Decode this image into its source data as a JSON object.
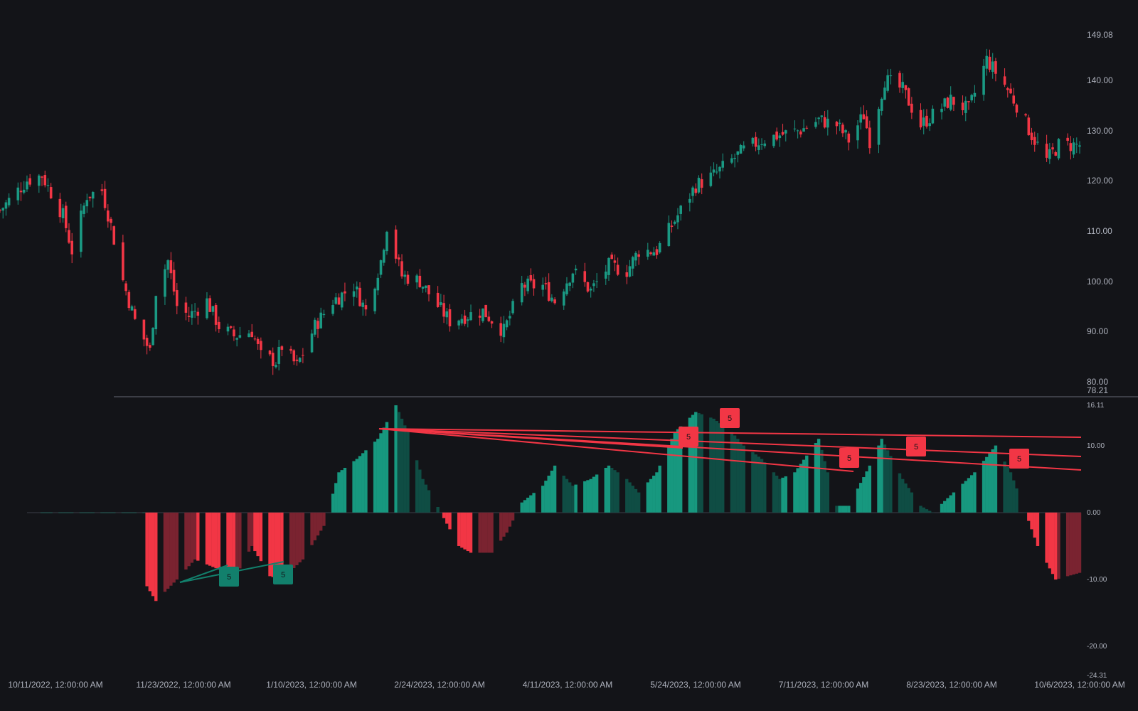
{
  "colors": {
    "background": "#131418",
    "up": "#1a9983",
    "down": "#f23645",
    "histogram_up_strong": "#17987f",
    "histogram_up_weak": "#0f4d44",
    "histogram_down_strong": "#f23645",
    "histogram_down_weak": "#7a2330",
    "axis_text": "#aeb2bd",
    "divider": "#4a4d56",
    "bear_divergence": "#f23645",
    "bull_divergence": "#12806c"
  },
  "price_axis": {
    "ticks": [
      "149.08",
      "140.00",
      "130.00",
      "120.00",
      "110.00",
      "100.00",
      "90.00",
      "80.00",
      "78.21"
    ]
  },
  "oscillator_axis": {
    "ticks": [
      "16.11",
      "10.00",
      "0.00",
      "-10.00",
      "-20.00",
      "-24.31"
    ]
  },
  "time_axis": {
    "labels": [
      "10/11/2022, 12:00:00 AM",
      "11/23/2022, 12:00:00 AM",
      "1/10/2023, 12:00:00 AM",
      "2/24/2023, 12:00:00 AM",
      "4/11/2023, 12:00:00 AM",
      "5/24/2023, 12:00:00 AM",
      "7/11/2023, 12:00:00 AM",
      "8/23/2023, 12:00:00 AM",
      "10/6/2023, 12:00:00 AM"
    ]
  },
  "divergence_markers": [
    {
      "label": "5",
      "kind": "bull"
    },
    {
      "label": "5",
      "kind": "bull"
    },
    {
      "label": "5",
      "kind": "bear"
    },
    {
      "label": "5",
      "kind": "bear"
    },
    {
      "label": "5",
      "kind": "bear"
    },
    {
      "label": "5",
      "kind": "bear"
    },
    {
      "label": "5",
      "kind": "bear"
    }
  ],
  "chart_data": [
    {
      "type": "candlestick",
      "ylim": [
        78.21,
        149.08
      ],
      "x_start": "10/11/2022",
      "x_end": "10/6/2023",
      "close_path": [
        [
          "10/11/2022",
          114
        ],
        [
          "10/20/2022",
          120
        ],
        [
          "10/25/2022",
          121
        ],
        [
          "11/1/2022",
          113
        ],
        [
          "11/4/2022",
          106
        ],
        [
          "11/9/2022",
          117
        ],
        [
          "11/14/2022",
          118
        ],
        [
          "11/17/2022",
          111
        ],
        [
          "11/21/2022",
          100
        ],
        [
          "11/25/2022",
          92
        ],
        [
          "11/30/2022",
          86
        ],
        [
          "12/2/2022",
          98
        ],
        [
          "12/6/2022",
          104
        ],
        [
          "12/9/2022",
          95
        ],
        [
          "12/13/2022",
          93
        ],
        [
          "12/19/2022",
          96
        ],
        [
          "12/23/2022",
          91
        ],
        [
          "12/28/2022",
          89
        ],
        [
          "1/3/2023",
          90
        ],
        [
          "1/6/2023",
          85
        ],
        [
          "1/11/2023",
          84
        ],
        [
          "1/13/2023",
          87
        ],
        [
          "1/18/2023",
          83
        ],
        [
          "1/24/2023",
          91
        ],
        [
          "1/30/2023",
          96
        ],
        [
          "2/6/2023",
          99
        ],
        [
          "2/10/2023",
          94
        ],
        [
          "2/15/2023",
          104
        ],
        [
          "2/17/2023",
          111
        ],
        [
          "2/22/2023",
          101
        ],
        [
          "2/28/2023",
          100
        ],
        [
          "3/6/2023",
          95
        ],
        [
          "3/10/2023",
          92
        ],
        [
          "3/15/2023",
          93
        ],
        [
          "3/21/2023",
          94
        ],
        [
          "3/28/2023",
          90
        ],
        [
          "4/3/2023",
          99
        ],
        [
          "4/10/2023",
          99
        ],
        [
          "4/14/2023",
          96
        ],
        [
          "4/20/2023",
          102
        ],
        [
          "4/26/2023",
          98
        ],
        [
          "5/2/2023",
          103
        ],
        [
          "5/8/2023",
          102
        ],
        [
          "5/12/2023",
          106
        ],
        [
          "5/18/2023",
          106
        ],
        [
          "5/24/2023",
          112
        ],
        [
          "5/31/2023",
          119
        ],
        [
          "6/6/2023",
          121
        ],
        [
          "6/12/2023",
          124
        ],
        [
          "6/16/2023",
          126
        ],
        [
          "6/22/2023",
          128
        ],
        [
          "6/28/2023",
          129
        ],
        [
          "7/5/2023",
          130
        ],
        [
          "7/11/2023",
          132
        ],
        [
          "7/17/2023",
          131
        ],
        [
          "7/21/2023",
          128
        ],
        [
          "7/26/2023",
          133
        ],
        [
          "7/28/2023",
          128
        ],
        [
          "8/2/2023",
          140
        ],
        [
          "8/8/2023",
          138
        ],
        [
          "8/14/2023",
          131
        ],
        [
          "8/18/2023",
          133
        ],
        [
          "8/24/2023",
          136
        ],
        [
          "8/30/2023",
          134
        ],
        [
          "9/5/2023",
          144
        ],
        [
          "9/11/2023",
          139
        ],
        [
          "9/15/2023",
          135
        ],
        [
          "9/20/2023",
          129
        ],
        [
          "9/25/2023",
          124
        ],
        [
          "9/29/2023",
          127
        ],
        [
          "10/6/2023",
          127
        ]
      ]
    },
    {
      "type": "histogram",
      "ylim": [
        -24.31,
        16.11
      ],
      "series_path": [
        [
          "10/25/2022",
          0
        ],
        [
          "11/28/2022",
          0
        ],
        [
          "11/29/2022",
          -11
        ],
        [
          "12/2/2022",
          -13.2
        ],
        [
          "12/9/2022",
          -10
        ],
        [
          "12/15/2022",
          -7
        ],
        [
          "12/23/2022",
          -8.5
        ],
        [
          "12/28/2022",
          -10
        ],
        [
          "1/3/2023",
          -5
        ],
        [
          "1/9/2023",
          -9.5
        ],
        [
          "1/13/2023",
          -10
        ],
        [
          "1/20/2023",
          -7
        ],
        [
          "1/27/2023",
          -2
        ],
        [
          "2/1/2023",
          6
        ],
        [
          "2/7/2023",
          8
        ],
        [
          "2/14/2023",
          11
        ],
        [
          "2/20/2023",
          16
        ],
        [
          "2/24/2023",
          12
        ],
        [
          "3/1/2023",
          5
        ],
        [
          "3/7/2023",
          0
        ],
        [
          "3/13/2023",
          -5
        ],
        [
          "3/17/2023",
          -6
        ],
        [
          "3/24/2023",
          -6
        ],
        [
          "3/29/2023",
          -3
        ],
        [
          "4/3/2023",
          1.5
        ],
        [
          "4/10/2023",
          4
        ],
        [
          "4/14/2023",
          7
        ],
        [
          "4/20/2023",
          4
        ],
        [
          "4/26/2023",
          5
        ],
        [
          "5/2/2023",
          7
        ],
        [
          "5/8/2023",
          5
        ],
        [
          "5/12/2023",
          3
        ],
        [
          "5/18/2023",
          6
        ],
        [
          "5/24/2023",
          12
        ],
        [
          "5/31/2023",
          15
        ],
        [
          "6/6/2023",
          14
        ],
        [
          "6/12/2023",
          12
        ],
        [
          "6/16/2023",
          10
        ],
        [
          "6/22/2023",
          8
        ],
        [
          "6/28/2023",
          5
        ],
        [
          "7/3/2023",
          6
        ],
        [
          "7/11/2023",
          11
        ],
        [
          "7/17/2023",
          1
        ],
        [
          "7/21/2023",
          1
        ],
        [
          "7/28/2023",
          7
        ],
        [
          "8/1/2023",
          11
        ],
        [
          "8/8/2023",
          5
        ],
        [
          "8/14/2023",
          1
        ],
        [
          "8/18/2023",
          0
        ],
        [
          "8/25/2023",
          3
        ],
        [
          "9/1/2023",
          6
        ],
        [
          "9/8/2023",
          10
        ],
        [
          "9/13/2023",
          6
        ],
        [
          "9/18/2023",
          0
        ],
        [
          "9/22/2023",
          -5
        ],
        [
          "9/28/2023",
          -10
        ],
        [
          "10/6/2023",
          -9
        ]
      ]
    }
  ]
}
